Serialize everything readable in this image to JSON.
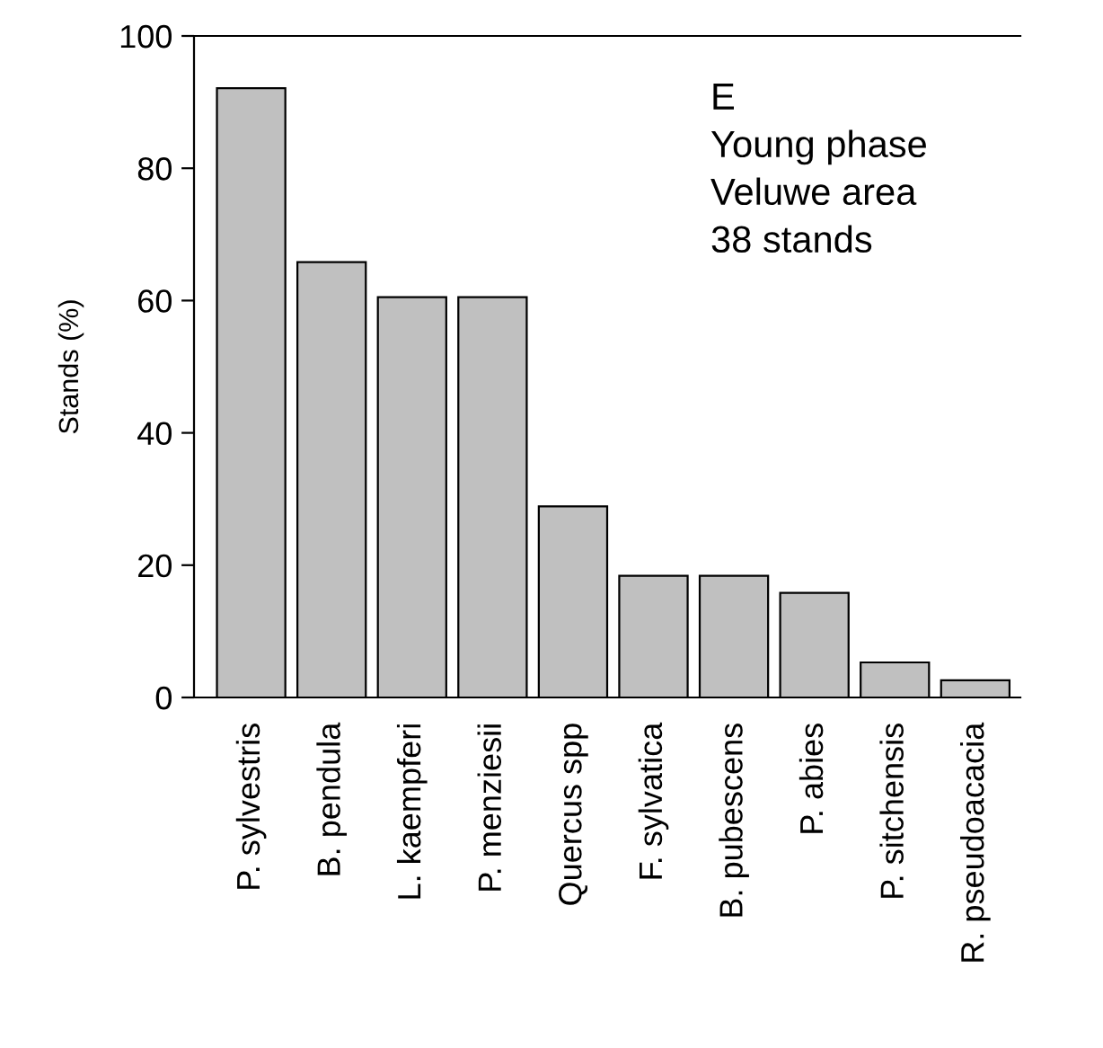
{
  "chart_data": {
    "type": "bar",
    "ylabel": "Stands (%)",
    "categories": [
      "P. sylvestris",
      "B. pendula",
      "L. kaempferi",
      "P. menziesii",
      "Quercus spp",
      "F. sylvatica",
      "B. pubescens",
      "P. abies",
      "P. sitchensis",
      "R. pseudoacacia"
    ],
    "values": [
      92.1,
      65.8,
      60.5,
      60.5,
      28.9,
      18.4,
      18.4,
      15.8,
      5.3,
      2.6
    ],
    "color": "#c0c0c0",
    "ylim": [
      0,
      100
    ],
    "yticks": [
      0,
      20,
      40,
      60,
      80,
      100
    ],
    "grid": false,
    "annotations": [
      "E",
      "Young phase",
      "Veluwe area",
      "38 stands"
    ]
  }
}
